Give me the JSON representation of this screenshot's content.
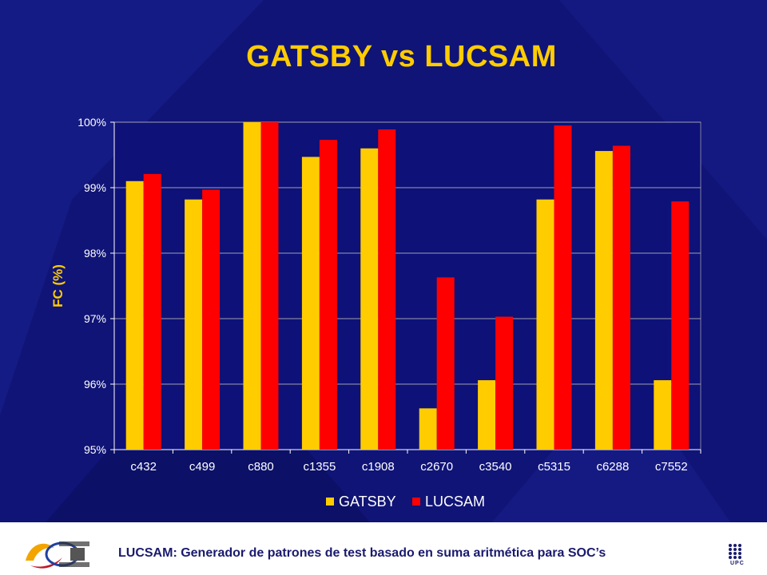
{
  "slide": {
    "title": "GATSBY vs LUCSAM",
    "footer": "LUCSAM: Generador de patrones de test basado en suma aritmética para SOC’s",
    "right_logo_label": "UPC"
  },
  "colors": {
    "background": "#101476",
    "plot_background": "#0d1178",
    "title": "#FFCC00",
    "gatsby": "#FFCC00",
    "lucsam": "#FF0000",
    "axis_text": "#FFFFFF",
    "ylabel": "#FFCC00"
  },
  "chart_data": {
    "type": "bar",
    "title": "GATSBY vs LUCSAM",
    "xlabel": "",
    "ylabel": "FC (%)",
    "ylim": [
      95,
      100
    ],
    "yticks": [
      95,
      96,
      97,
      98,
      99,
      100
    ],
    "ytick_labels": [
      "95%",
      "96%",
      "97%",
      "98%",
      "99%",
      "100%"
    ],
    "grid": true,
    "legend_position": "bottom-center",
    "categories": [
      "c432",
      "c499",
      "c880",
      "c1355",
      "c1908",
      "c2670",
      "c3540",
      "c5315",
      "c6288",
      "c7552"
    ],
    "series": [
      {
        "name": "GATSBY",
        "color": "#FFCC00",
        "values": [
          99.1,
          98.82,
          100,
          99.47,
          99.6,
          95.63,
          96.06,
          98.82,
          99.56,
          96.06
        ]
      },
      {
        "name": "LUCSAM",
        "color": "#FF0000",
        "values": [
          99.21,
          98.97,
          100,
          99.73,
          99.89,
          97.63,
          97.03,
          99.95,
          99.64,
          98.79
        ]
      }
    ]
  }
}
